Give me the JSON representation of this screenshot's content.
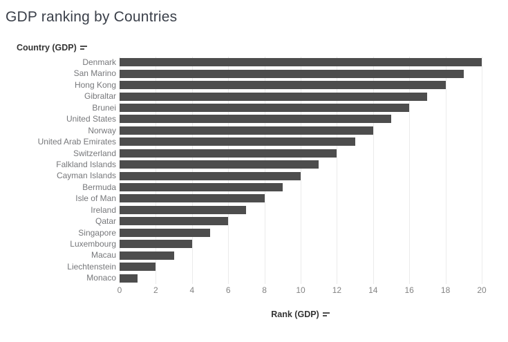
{
  "title": "GDP ranking by Countries",
  "row_header": {
    "label": "Country (GDP)",
    "sort_icon": "sort-descending-icon"
  },
  "x_axis": {
    "label": "Rank (GDP)",
    "sort_icon": "sort-descending-icon",
    "ticks": [
      0,
      2,
      4,
      6,
      8,
      10,
      12,
      14,
      16,
      18,
      20
    ]
  },
  "colors": {
    "bar": "#4d4d4d",
    "title": "#3b404a",
    "field_label": "#333333",
    "category_label": "#76777a",
    "tick_label": "#838383",
    "gridline": "#ebebeb",
    "background": "#ffffff"
  },
  "chart_data": {
    "type": "bar",
    "orientation": "horizontal",
    "title": "GDP ranking by Countries",
    "xlabel": "Rank (GDP)",
    "ylabel": "Country (GDP)",
    "xlim": [
      0,
      20
    ],
    "grid": true,
    "legend": false,
    "categories": [
      "Denmark",
      "San Marino",
      "Hong Kong",
      "Gibraltar",
      "Brunei",
      "United States",
      "Norway",
      "United Arab Emirates",
      "Switzerland",
      "Falkland Islands",
      "Cayman Islands",
      "Bermuda",
      "Isle of Man",
      "Ireland",
      "Qatar",
      "Singapore",
      "Luxembourg",
      "Macau",
      "Liechtenstein",
      "Monaco"
    ],
    "values": [
      20,
      19,
      18,
      17,
      16,
      15,
      14,
      13,
      12,
      11,
      10,
      9,
      8,
      7,
      6,
      5,
      4,
      3,
      2,
      1
    ]
  }
}
